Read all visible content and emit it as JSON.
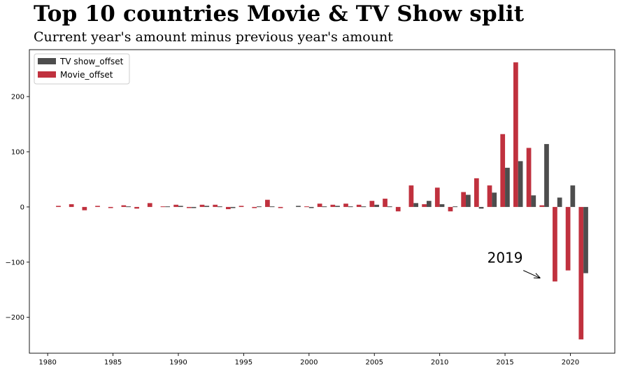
{
  "title": "Top 10 countries Movie & TV Show split",
  "subtitle": "Current year's amount minus previous year's amount",
  "chart_data": {
    "type": "bar",
    "x": [
      1981,
      1982,
      1983,
      1984,
      1985,
      1986,
      1987,
      1988,
      1989,
      1990,
      1991,
      1992,
      1993,
      1994,
      1995,
      1996,
      1997,
      1998,
      1999,
      2000,
      2001,
      2002,
      2003,
      2004,
      2005,
      2006,
      2007,
      2008,
      2009,
      2010,
      2011,
      2012,
      2013,
      2014,
      2015,
      2016,
      2017,
      2018,
      2019,
      2020,
      2021
    ],
    "series": [
      {
        "name": "TV show_offset",
        "color": "#4d4d4d",
        "values": [
          0,
          0,
          0,
          0,
          0,
          1,
          0,
          0,
          1,
          2,
          -2,
          2,
          1,
          -2,
          0,
          1,
          1,
          0,
          2,
          -2,
          1,
          2,
          1,
          1,
          4,
          1,
          0,
          7,
          11,
          5,
          1,
          22,
          -3,
          26,
          71,
          83,
          21,
          114,
          17,
          39,
          -120
        ]
      },
      {
        "name": "Movie_offset",
        "color": "#c0313e",
        "values": [
          2,
          5,
          -6,
          2,
          -2,
          3,
          -3,
          7,
          1,
          4,
          -2,
          4,
          4,
          -4,
          2,
          -2,
          13,
          -2,
          0,
          1,
          6,
          4,
          6,
          4,
          11,
          15,
          -8,
          39,
          5,
          35,
          -8,
          27,
          52,
          39,
          132,
          262,
          107,
          3,
          -135,
          -115,
          -240
        ]
      }
    ],
    "xticks": [
      1980,
      1985,
      1990,
      1995,
      2000,
      2005,
      2010,
      2015,
      2020
    ],
    "yticks": [
      -200,
      -100,
      0,
      100,
      200
    ],
    "xlim": [
      1978.6,
      2023.4
    ],
    "ylim": [
      -265,
      285
    ],
    "legend_placement": "top-left",
    "grid": false,
    "annotation": {
      "text": "2019",
      "text_x": 2015.0,
      "text_y": -101,
      "arrow_from": [
        2016.4,
        -115
      ],
      "arrow_to": [
        2017.7,
        -129
      ]
    }
  }
}
